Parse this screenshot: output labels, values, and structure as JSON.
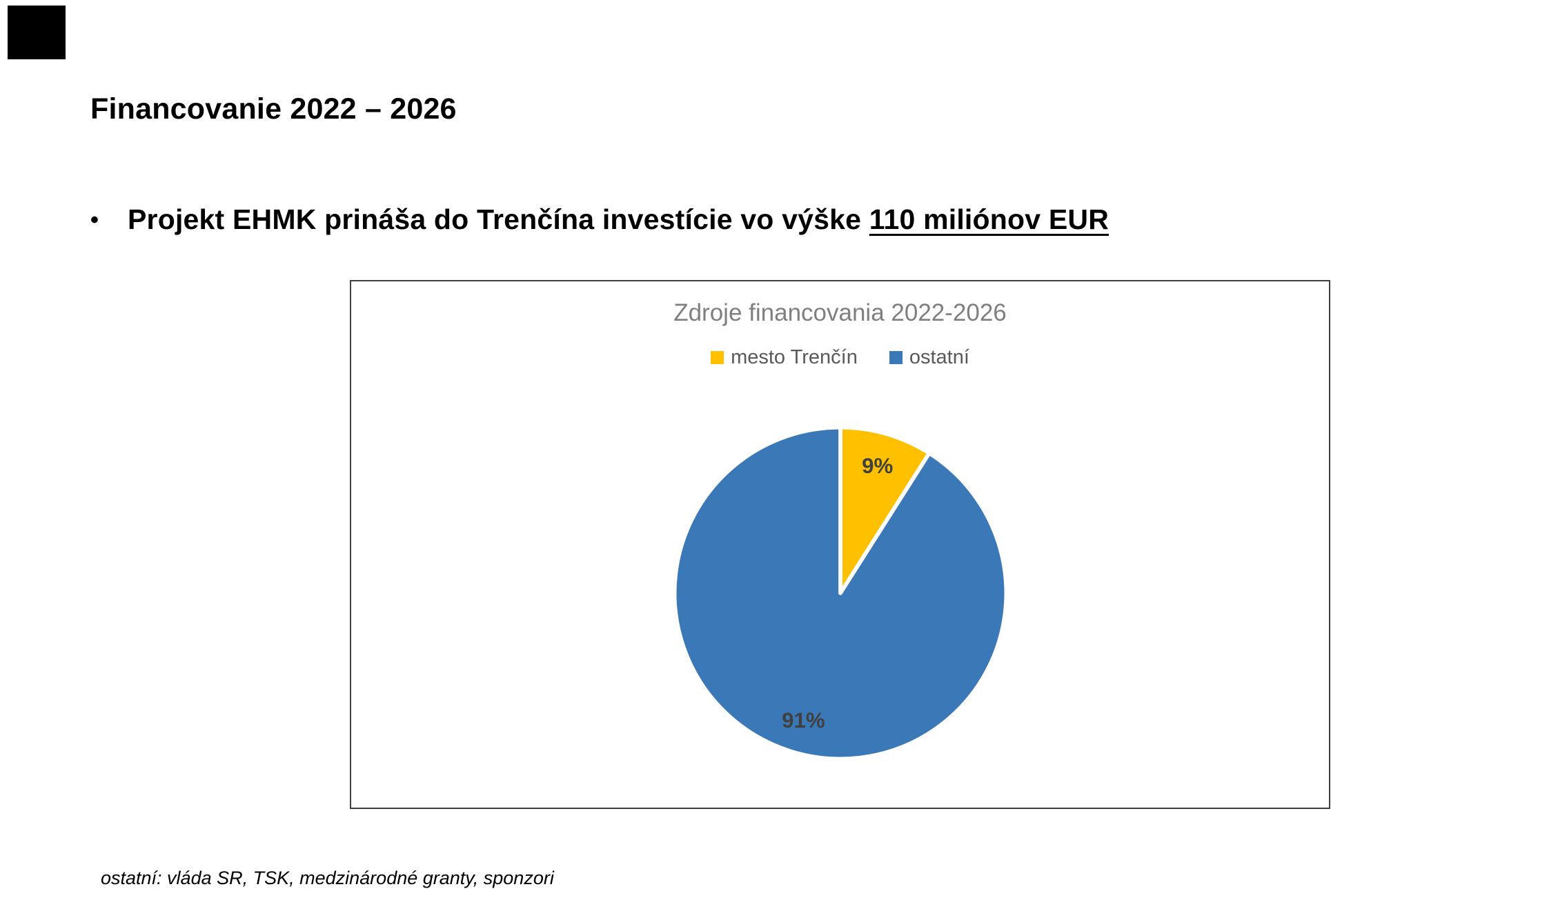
{
  "page": {
    "title": "Financovanie 2022 – 2026",
    "bullet": {
      "marker": "•",
      "text": "Projekt EHMK prináša do Trenčína investície vo výške ",
      "highlight": "110 miliónov EUR"
    },
    "footnote": "ostatní: vláda SR, TSK, medzinárodné granty, sponzori"
  },
  "chart_data": {
    "type": "pie",
    "title": "Zdroje financovania 2022-2026",
    "legend_position": "top",
    "direction": "clockwise",
    "start_angle_deg": 0,
    "units": "percent",
    "slices": [
      {
        "label": "mesto Trenčín",
        "value": 9,
        "percent_label": "9%",
        "color": "#FFC000"
      },
      {
        "label": "ostatní",
        "value": 91,
        "percent_label": "91%",
        "color": "#3A78B8"
      }
    ],
    "data_label_color": "#404040",
    "title_color": "#7F7F7F",
    "legend_text_color": "#595959"
  }
}
